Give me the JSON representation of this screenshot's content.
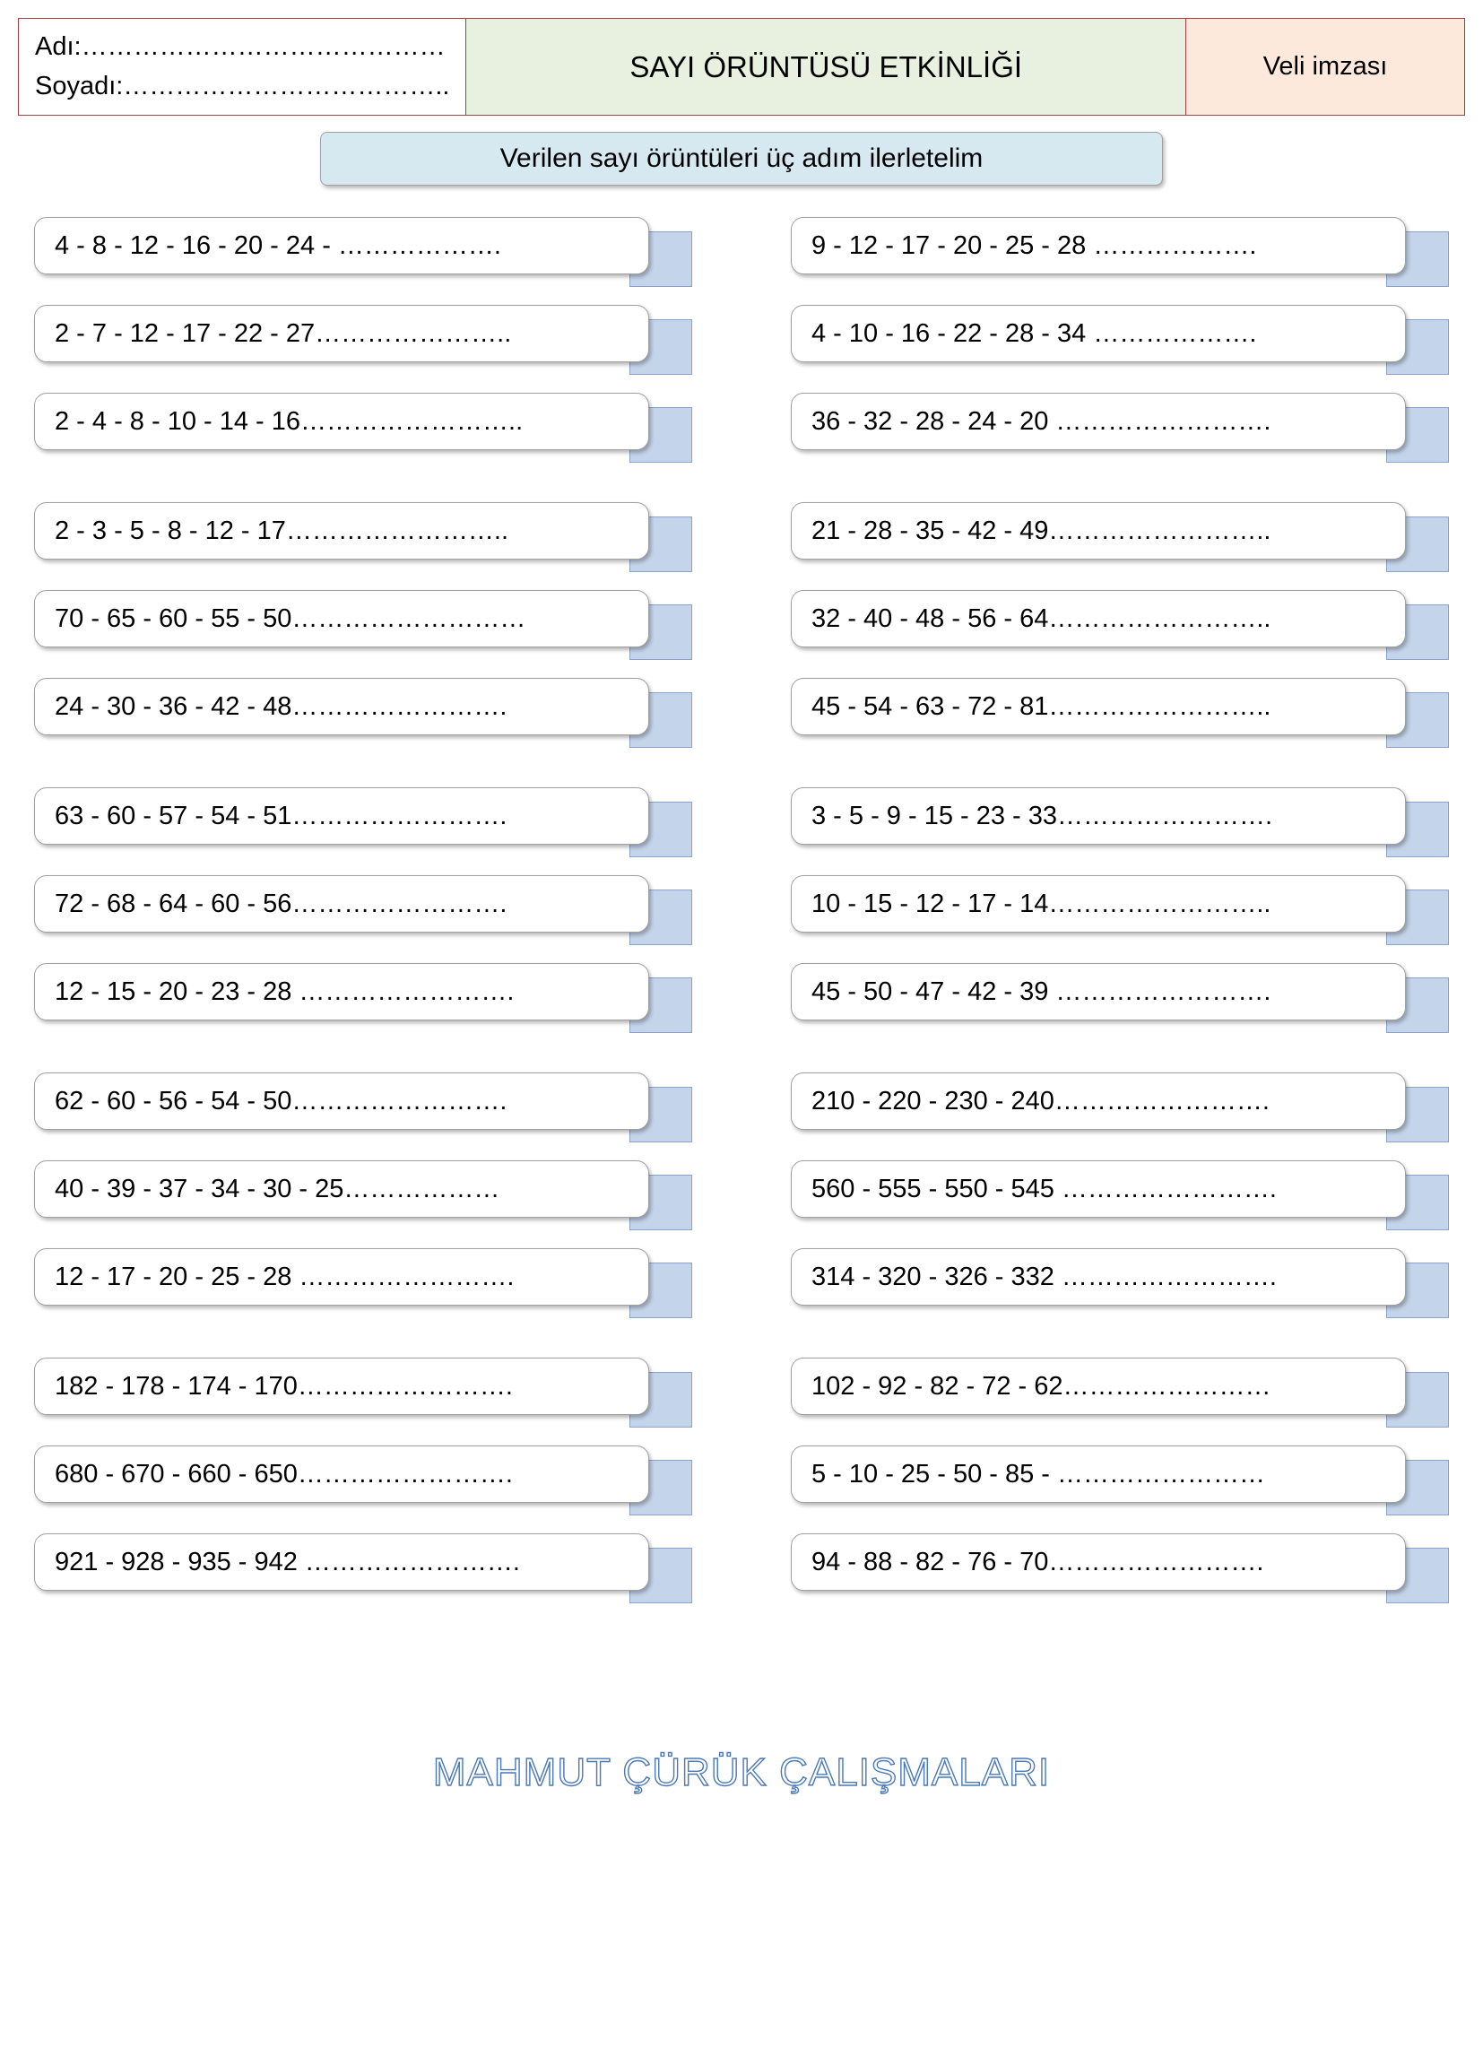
{
  "header": {
    "name_label": "Adı:……………………………………",
    "surname_label": "Soyadı:………………………………..",
    "title": "SAYI ÖRÜNTÜSÜ ETKİNLİĞİ",
    "signature_label": "Veli imzası"
  },
  "sub_banner": "Verilen sayı örüntüleri üç adım ilerletelim",
  "colors": {
    "header_border": "#a04040",
    "title_bg": "#e8f0e0",
    "sign_bg": "#fde9dc",
    "banner_bg": "#d6e9f0",
    "bar_bg": "#c4d4ea",
    "bar_border": "#8aa4c8",
    "footer_stroke": "#4a78b8"
  },
  "left_groups": [
    [
      "4 - 8 - 12 - 16 - 20 - 24 - ……………….",
      "2 - 7 - 12 - 17 - 22 - 27…………………..",
      "2 - 4 - 8 - 10 - 14 - 16…………………….."
    ],
    [
      "2 - 3 - 5 - 8 - 12 - 17……………………..",
      "70 - 65 - 60 - 55 - 50………………………",
      "24 - 30 - 36 - 42 - 48……………………."
    ],
    [
      "63 - 60 - 57 - 54 - 51…………………….",
      "72 - 68 - 64 - 60 - 56…………………….",
      "12 - 15 - 20 - 23 - 28 ……………………."
    ],
    [
      "62 - 60 - 56 - 54 - 50…………………….",
      "40 - 39 - 37 - 34 - 30 - 25………………",
      "12 - 17 - 20 - 25 - 28 ……………………."
    ],
    [
      "182 - 178 - 174 - 170…………………….",
      "680 - 670 - 660 - 650…………………….",
      "921 - 928 - 935 - 942 ……………………."
    ]
  ],
  "right_groups": [
    [
      "9 - 12 - 17 - 20 - 25 - 28 ……………….",
      "4 - 10 - 16 - 22 - 28 - 34 ……………….",
      "36 - 32 - 28 - 24 - 20 ……………………."
    ],
    [
      "21 - 28 - 35 - 42 - 49……………………..",
      "32 - 40 - 48 - 56 - 64……………………..",
      "45 - 54 - 63 - 72 - 81…………………….."
    ],
    [
      "3 - 5 - 9 - 15 - 23 - 33…………………….",
      "10 - 15 - 12 - 17 - 14……………………..",
      "45 - 50 - 47 - 42 - 39 ……………………."
    ],
    [
      "210 - 220 - 230 - 240…………………….",
      "560 - 555 - 550 - 545 …………………….",
      "314 - 320 - 326 - 332 ……………………."
    ],
    [
      "102 - 92 - 82 - 72 - 62……………………",
      "5 - 10 - 25 - 50 - 85 - ……………………",
      "94 - 88 - 82 - 76 - 70……………………."
    ]
  ],
  "footer": "MAHMUT ÇÜRÜK ÇALIŞMALARI"
}
